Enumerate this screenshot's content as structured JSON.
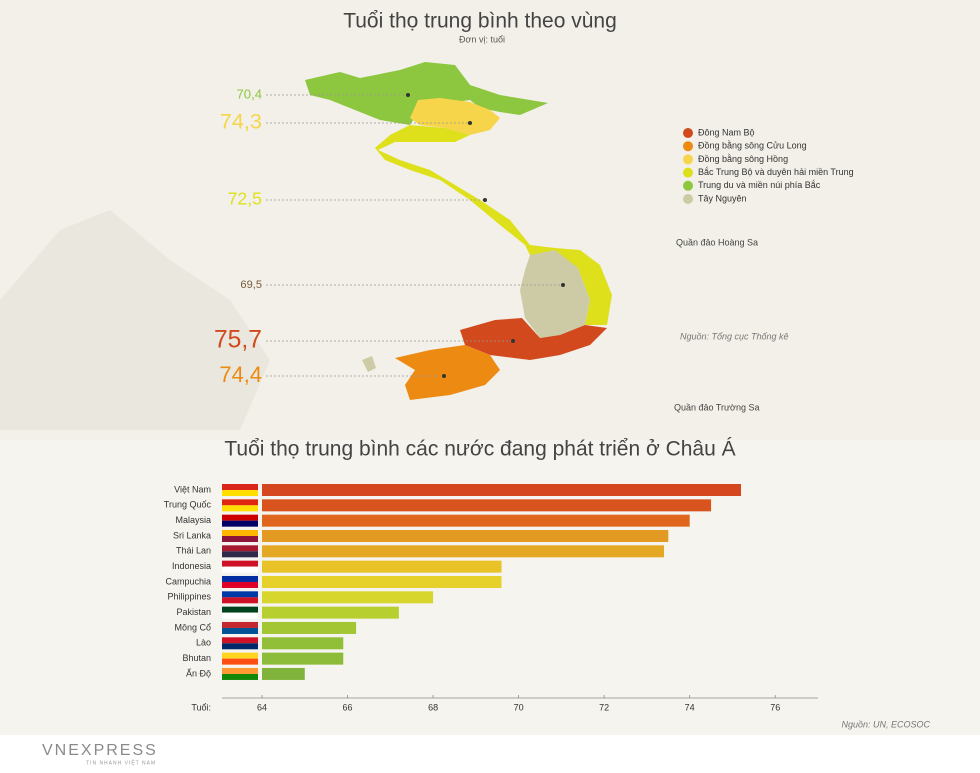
{
  "map": {
    "title": "Tuổi thọ trung bình theo vùng",
    "unit": "Đơn vị: tuổi",
    "regions": [
      {
        "name": "Đông Nam Bộ",
        "color": "#d2491e",
        "value": 75.7,
        "value_label": "75,7"
      },
      {
        "name": "Đồng bằng sông Cửu Long",
        "color": "#ec8a12",
        "value": 74.4,
        "value_label": "74,4"
      },
      {
        "name": "Đồng bằng sông Hồng",
        "color": "#f6d54a",
        "value": 74.3,
        "value_label": "74,3"
      },
      {
        "name": "Bắc Trung Bộ và duyên hải miền Trung",
        "color": "#dfe01c",
        "value": 72.5,
        "value_label": "72,5"
      },
      {
        "name": "Trung du và miền núi phía Bắc",
        "color": "#8dc63f",
        "value": 70.4,
        "value_label": "70,4"
      },
      {
        "name": "Tây Nguyên",
        "color": "#cdcaa6",
        "value": 69.5,
        "value_label": "69,5"
      }
    ],
    "islands": [
      "Quần đảo Hoàng Sa",
      "Quần đảo Trường Sa"
    ],
    "source": "Nguồn: Tổng cục Thống kê"
  },
  "chart_data": {
    "type": "bar",
    "orientation": "horizontal",
    "title": "Tuổi thọ trung bình các nước đang phát triển ở Châu Á",
    "categories": [
      "Việt Nam",
      "Trung Quốc",
      "Malaysia",
      "Sri Lanka",
      "Thái Lan",
      "Indonesia",
      "Campuchia",
      "Philippines",
      "Pakistan",
      "Mông Cổ",
      "Lào",
      "Bhutan",
      "Ấn Độ"
    ],
    "values": [
      75.2,
      74.5,
      74.0,
      73.5,
      73.4,
      69.6,
      69.6,
      68.0,
      67.2,
      66.2,
      65.9,
      65.9,
      65.0
    ],
    "colors": [
      "#d4471f",
      "#d9531f",
      "#e0661e",
      "#e39a22",
      "#e5a824",
      "#e8c227",
      "#e6d02a",
      "#d7d62c",
      "#b8cf30",
      "#a3c635",
      "#92bf38",
      "#8cbc39",
      "#7fb33b"
    ],
    "xlabel": "Tuổi:",
    "xlim": [
      64,
      77
    ],
    "xticks": [
      64,
      66,
      68,
      70,
      72,
      74,
      76
    ],
    "source": "Nguồn: UN, ECOSOC"
  },
  "footer": {
    "logo": "VNEXPRESS",
    "tagline": "TIN NHANH VIỆT NAM"
  }
}
